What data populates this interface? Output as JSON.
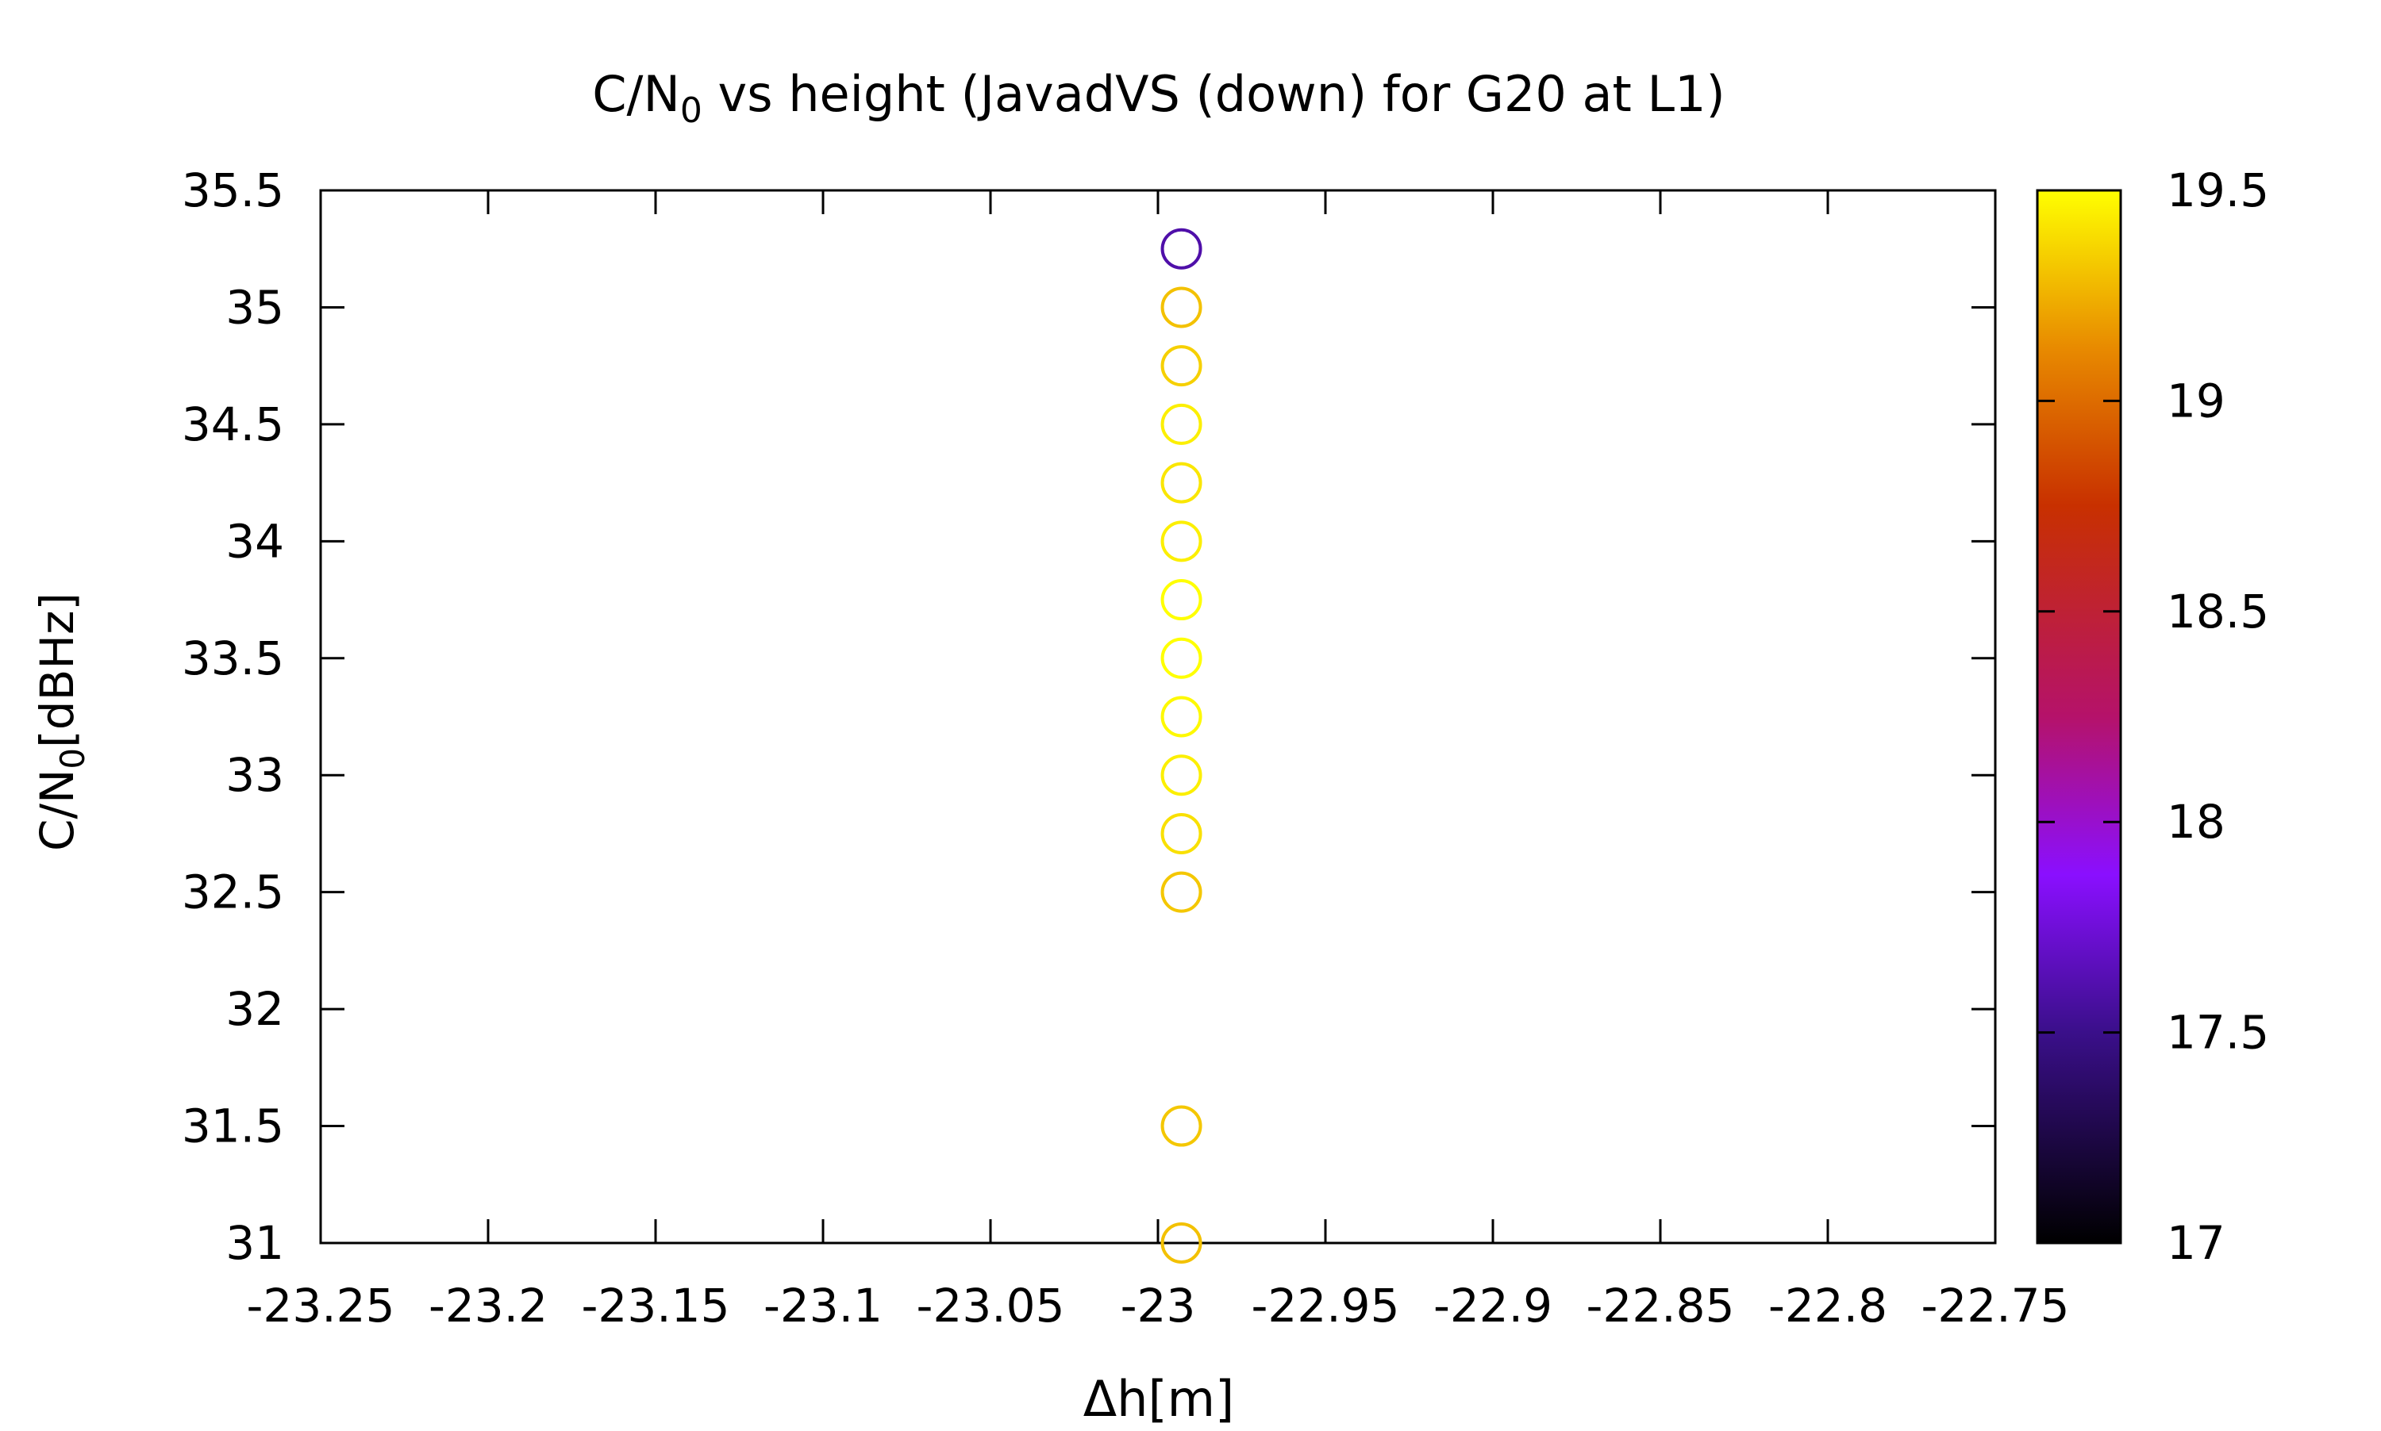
{
  "chart_data": {
    "type": "scatter",
    "title": {
      "prefix": "C/N",
      "subscript": "0",
      "suffix": " vs height (JavadVS (down) for G20 at L1)"
    },
    "xlabel": "Δh[m]",
    "ylabel": {
      "prefix": "C/N",
      "subscript": "0",
      "suffix": "[dBHz]"
    },
    "xlim": [
      -23.25,
      -22.75
    ],
    "ylim": [
      31,
      35.5
    ],
    "xticks": [
      "-23.25",
      "-23.2",
      "-23.15",
      "-23.1",
      "-23.05",
      "-23",
      "-22.95",
      "-22.9",
      "-22.85",
      "-22.8",
      "-22.75"
    ],
    "yticks": [
      "31",
      "31.5",
      "32",
      "32.5",
      "33",
      "33.5",
      "34",
      "34.5",
      "35",
      "35.5"
    ],
    "marker": "open-circle",
    "colorbar": {
      "range": [
        17,
        19.5
      ],
      "ticks": [
        "17",
        "17.5",
        "18",
        "18.5",
        "19",
        "19.5"
      ],
      "palette": [
        {
          "t": 0.0,
          "color": "#000000"
        },
        {
          "t": 0.2,
          "color": "#3a0f8a"
        },
        {
          "t": 0.35,
          "color": "#8a0fff"
        },
        {
          "t": 0.5,
          "color": "#b5126a"
        },
        {
          "t": 0.7,
          "color": "#c83000"
        },
        {
          "t": 0.85,
          "color": "#e88a00"
        },
        {
          "t": 1.0,
          "color": "#ffff00"
        }
      ]
    },
    "points": [
      {
        "x": -22.993,
        "y": 35.25,
        "c": 17.6
      },
      {
        "x": -22.993,
        "y": 35.0,
        "c": 19.3
      },
      {
        "x": -22.993,
        "y": 34.75,
        "c": 19.35
      },
      {
        "x": -22.993,
        "y": 34.5,
        "c": 19.45
      },
      {
        "x": -22.993,
        "y": 34.25,
        "c": 19.42
      },
      {
        "x": -22.993,
        "y": 34.0,
        "c": 19.45
      },
      {
        "x": -22.993,
        "y": 33.75,
        "c": 19.5
      },
      {
        "x": -22.993,
        "y": 33.5,
        "c": 19.5
      },
      {
        "x": -22.993,
        "y": 33.25,
        "c": 19.48
      },
      {
        "x": -22.993,
        "y": 33.0,
        "c": 19.45
      },
      {
        "x": -22.993,
        "y": 32.75,
        "c": 19.4
      },
      {
        "x": -22.993,
        "y": 32.5,
        "c": 19.32
      },
      {
        "x": -22.993,
        "y": 31.5,
        "c": 19.32
      },
      {
        "x": -22.993,
        "y": 31.0,
        "c": 19.3
      }
    ]
  }
}
